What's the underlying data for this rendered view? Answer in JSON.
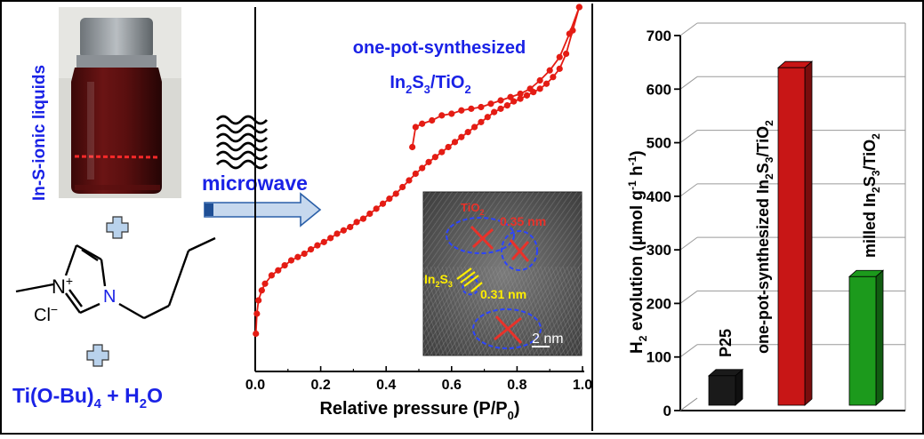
{
  "colors": {
    "frame": "#000000",
    "blue_text": "#1a22e6",
    "isotherm": "#e41c14",
    "arrow_fill": "#c6d8ee",
    "arrow_stroke": "#2a5fa8",
    "plus_fill": "#b9d2ec",
    "tem_red": "#e8322a",
    "tem_yellow": "#ffee00",
    "tem_blue": "#2b44ff",
    "bar_black": "#1a1a1a",
    "bar_red": "#c81616",
    "bar_green": "#1c9a1c"
  },
  "left_panel": {
    "vial_label": "In-S-ionic liquids",
    "ionic_liquid": {
      "n_plus": "N",
      "plus": "+",
      "cl": "Cl",
      "minus": "−",
      "n": "N"
    },
    "precursor": {
      "prefix": "Ti(O-Bu)",
      "sub": "4",
      "middle": " + H",
      "sub2": "2",
      "suffix": "O"
    },
    "microwave_label": "microwave"
  },
  "isotherm_panel": {
    "sample_line1": "one-pot-synthesized",
    "sample_line2": {
      "a": "In",
      "s1": "2",
      "b": "S",
      "s2": "3",
      "c": "/TiO",
      "s3": "2"
    },
    "xlabel": {
      "main": "Relative pressure (P/P",
      "sub": "0",
      "close": ")"
    },
    "tem": {
      "tio2": {
        "a": "TiO",
        "s": "2"
      },
      "d1": "0.35 nm",
      "in2s3": {
        "a": "In",
        "s1": "2",
        "b": "S",
        "s2": "3"
      },
      "d2": "0.31 nm",
      "scale": "2  nm"
    }
  },
  "chart_data": [
    {
      "type": "line",
      "title": "",
      "xlabel": "Relative pressure (P/P0)",
      "ylabel": "",
      "xlim": [
        0,
        1.0
      ],
      "ylim": [
        0,
        100
      ],
      "xticks": [
        "0.0",
        "0.2",
        "0.4",
        "0.6",
        "0.8",
        "1.0"
      ],
      "series": [
        {
          "name": "adsorption",
          "x": [
            0.002,
            0.005,
            0.01,
            0.02,
            0.03,
            0.05,
            0.07,
            0.09,
            0.11,
            0.13,
            0.15,
            0.17,
            0.19,
            0.21,
            0.23,
            0.25,
            0.27,
            0.29,
            0.31,
            0.33,
            0.35,
            0.37,
            0.39,
            0.41,
            0.43,
            0.45,
            0.47,
            0.49,
            0.51,
            0.53,
            0.55,
            0.57,
            0.59,
            0.61,
            0.63,
            0.65,
            0.67,
            0.69,
            0.71,
            0.73,
            0.75,
            0.77,
            0.79,
            0.81,
            0.83,
            0.85,
            0.87,
            0.89,
            0.91,
            0.93,
            0.95,
            0.97,
            0.99
          ],
          "y": [
            2,
            8,
            12,
            15,
            17,
            19.5,
            21,
            22.5,
            24,
            25,
            26,
            27.3,
            28.5,
            29.5,
            30.7,
            32,
            33,
            34,
            35.5,
            36.5,
            38,
            39.5,
            41,
            42.5,
            44,
            46,
            48,
            50,
            51.7,
            53.5,
            55,
            56.5,
            58,
            59.5,
            61,
            62.5,
            64,
            65.5,
            67,
            68.5,
            69.5,
            70.5,
            71.7,
            72.5,
            73.5,
            74.5,
            75.5,
            77,
            79,
            81.5,
            86,
            93,
            100
          ]
        },
        {
          "name": "desorption",
          "x": [
            0.99,
            0.96,
            0.93,
            0.9,
            0.87,
            0.84,
            0.81,
            0.78,
            0.75,
            0.72,
            0.69,
            0.66,
            0.63,
            0.6,
            0.57,
            0.54,
            0.51,
            0.49,
            0.48
          ],
          "y": [
            100,
            92,
            85,
            81,
            78,
            75.5,
            74,
            73,
            72,
            71,
            70,
            69.5,
            69,
            68,
            67.5,
            66,
            65,
            64,
            58
          ]
        }
      ]
    },
    {
      "type": "bar",
      "title": "",
      "xlabel": "",
      "ylabel": "H2 evolution (μmol g-1 h-1)",
      "ylabel_parts": {
        "a": "H",
        "s1": "2",
        "b": " evolution (μmol g",
        "s2": "-1",
        "c": " h",
        "s3": "-1",
        "d": ")"
      },
      "ylim": [
        0,
        700
      ],
      "yticks": [
        "0",
        "100",
        "200",
        "300",
        "400",
        "500",
        "600",
        "700"
      ],
      "categories": [
        "P25",
        "one-pot-synthesized In2S3/TiO2",
        "milled In2S3/TiO2"
      ],
      "values": [
        65,
        640,
        250
      ],
      "bar_labels": [
        {
          "a": "P25"
        },
        {
          "a": "one-pot-synthesized  In",
          "s1": "2",
          "b": "S",
          "s2": "3",
          "c": "/TiO",
          "s3": "2"
        },
        {
          "a": "milled In",
          "s1": "2",
          "b": "S",
          "s2": "3",
          "c": "/TiO",
          "s3": "2"
        }
      ]
    }
  ]
}
